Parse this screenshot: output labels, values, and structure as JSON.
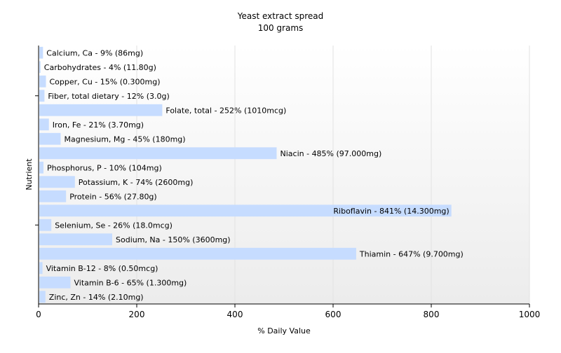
{
  "chart_data": {
    "type": "bar",
    "orientation": "horizontal",
    "title": "Yeast extract spread",
    "subtitle": "100 grams",
    "xlabel": "% Daily Value",
    "ylabel": "Nutrient",
    "xlim": [
      0,
      1000
    ],
    "x_ticks": [
      "0",
      "200",
      "400",
      "600",
      "800",
      "1000"
    ],
    "grid": "vertical",
    "colors": {
      "bar": "#c6dcff",
      "plot_background_top": "#ffffff",
      "plot_background_bottom": "#ececec",
      "grid": "#e2e2e2",
      "axis": "#000000",
      "text": "#000000"
    },
    "categories": [
      "Calcium, Ca",
      "Carbohydrates",
      "Copper, Cu",
      "Fiber, total dietary",
      "Folate, total",
      "Iron, Fe",
      "Magnesium, Mg",
      "Niacin",
      "Phosphorus, P",
      "Potassium, K",
      "Protein",
      "Riboflavin",
      "Selenium, Se",
      "Sodium, Na",
      "Thiamin",
      "Vitamin B-12",
      "Vitamin B-6",
      "Zinc, Zn"
    ],
    "values": [
      9,
      4,
      15,
      12,
      252,
      21,
      45,
      485,
      10,
      74,
      56,
      841,
      26,
      150,
      647,
      8,
      65,
      14
    ],
    "labels": [
      "Calcium, Ca - 9% (86mg)",
      "Carbohydrates - 4% (11.80g)",
      "Copper, Cu - 15% (0.300mg)",
      "Fiber, total dietary - 12% (3.0g)",
      "Folate, total - 252% (1010mcg)",
      "Iron, Fe - 21% (3.70mg)",
      "Magnesium, Mg - 45% (180mg)",
      "Niacin - 485% (97.000mg)",
      "Phosphorus, P - 10% (104mg)",
      "Potassium, K - 74% (2600mg)",
      "Protein - 56% (27.80g)",
      "Riboflavin - 841% (14.300mg)",
      "Selenium, Se - 26% (18.0mcg)",
      "Sodium, Na - 150% (3600mg)",
      "Thiamin - 647% (9.700mg)",
      "Vitamin B-12 - 8% (0.50mcg)",
      "Vitamin B-6 - 65% (1.300mg)",
      "Zinc, Zn - 14% (2.10mg)"
    ]
  }
}
